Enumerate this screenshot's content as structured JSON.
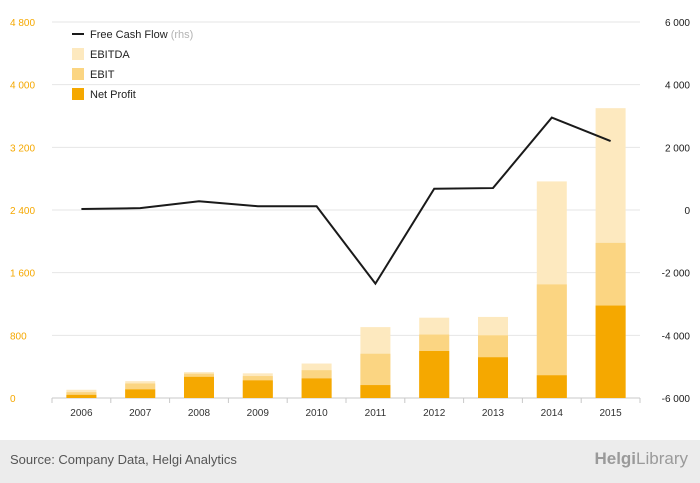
{
  "chart_data": {
    "type": "bar",
    "categories": [
      "2006",
      "2007",
      "2008",
      "2009",
      "2010",
      "2011",
      "2012",
      "2013",
      "2014",
      "2015"
    ],
    "series": [
      {
        "name": "Net Profit",
        "type": "bar",
        "axis": "left",
        "color": "#f5a800",
        "values": [
          40,
          110,
          270,
          225,
          250,
          165,
          600,
          520,
          290,
          1180
        ]
      },
      {
        "name": "EBIT",
        "type": "bar",
        "axis": "left",
        "color": "#fbd582",
        "values": [
          75,
          185,
          310,
          280,
          355,
          565,
          810,
          800,
          1450,
          1980
        ]
      },
      {
        "name": "EBITDA",
        "type": "bar",
        "axis": "left",
        "color": "#fde9bf",
        "values": [
          105,
          215,
          330,
          315,
          440,
          905,
          1025,
          1035,
          2765,
          3700
        ]
      },
      {
        "name": "Free Cash Flow",
        "type": "line",
        "axis": "right",
        "color": "#1a1a1a",
        "values": [
          30,
          60,
          280,
          120,
          120,
          -2350,
          680,
          700,
          2950,
          2200
        ]
      }
    ],
    "legend": [
      {
        "label": "Free Cash Flow",
        "suffix": "(rhs)",
        "kind": "line",
        "color": "#1a1a1a"
      },
      {
        "label": "EBITDA",
        "suffix": "",
        "kind": "box",
        "color": "#fde9bf"
      },
      {
        "label": "EBIT",
        "suffix": "",
        "kind": "box",
        "color": "#fbd582"
      },
      {
        "label": "Net Profit",
        "suffix": "",
        "kind": "box",
        "color": "#f5a800"
      }
    ],
    "legend_position": "top-left",
    "y_left": {
      "min": 0,
      "max": 4800,
      "ticks": [
        0,
        800,
        1600,
        2400,
        3200,
        4000,
        4800
      ],
      "tick_labels": [
        "0",
        "800",
        "1 600",
        "2 400",
        "3 200",
        "4 000",
        "4 800"
      ],
      "color": "#f5a800"
    },
    "y_right": {
      "min": -6000,
      "max": 6000,
      "ticks": [
        -6000,
        -4000,
        -2000,
        0,
        2000,
        4000,
        6000
      ],
      "tick_labels": [
        "-6 000",
        "-4 000",
        "-2 000",
        "0",
        "2 000",
        "4 000",
        "6 000"
      ],
      "color": "#1a1a1a"
    },
    "grid": true,
    "title": "",
    "xlabel": "",
    "ylabel": ""
  },
  "footer": {
    "source": "Source: Company Data, Helgi Analytics",
    "brand_part1": "Helgi",
    "brand_part2": "Library"
  }
}
